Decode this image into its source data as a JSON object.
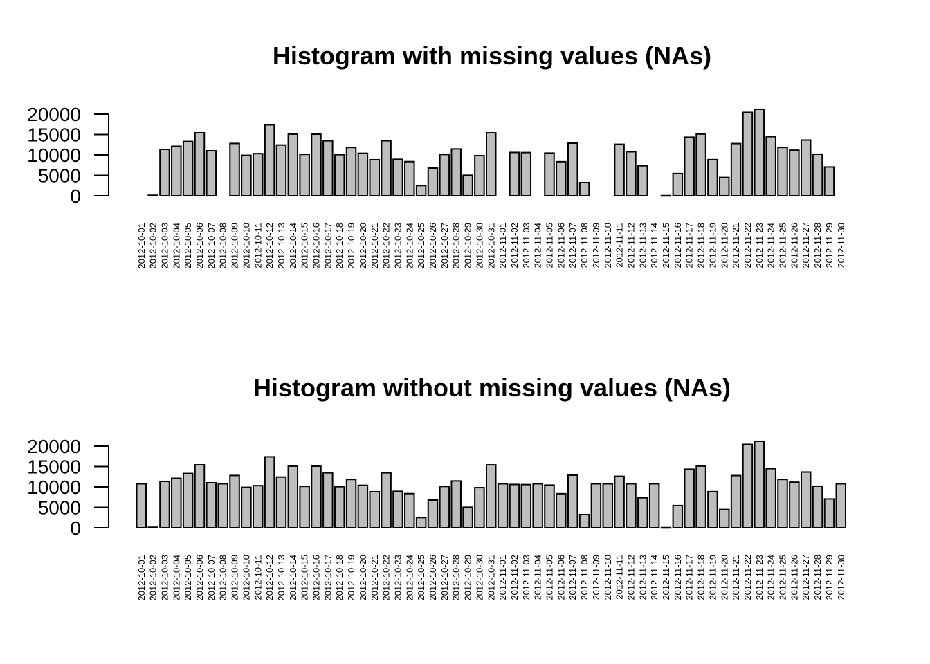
{
  "chart_data": [
    {
      "type": "bar",
      "title": "Histogram with missing values (NAs)",
      "xlabel": "",
      "ylabel": "",
      "ylim": [
        0,
        20000
      ],
      "yticks": [
        0,
        5000,
        10000,
        15000,
        20000
      ],
      "bar_color": "#bebebe",
      "categories": [
        "2012-10-01",
        "2012-10-02",
        "2012-10-03",
        "2012-10-04",
        "2012-10-05",
        "2012-10-06",
        "2012-10-07",
        "2012-10-08",
        "2012-10-09",
        "2012-10-10",
        "2012-10-11",
        "2012-10-12",
        "2012-10-13",
        "2012-10-14",
        "2012-10-15",
        "2012-10-16",
        "2012-10-17",
        "2012-10-18",
        "2012-10-19",
        "2012-10-20",
        "2012-10-21",
        "2012-10-22",
        "2012-10-23",
        "2012-10-24",
        "2012-10-25",
        "2012-10-26",
        "2012-10-27",
        "2012-10-28",
        "2012-10-29",
        "2012-10-30",
        "2012-10-31",
        "2012-11-01",
        "2012-11-02",
        "2012-11-03",
        "2012-11-04",
        "2012-11-05",
        "2012-11-06",
        "2012-11-07",
        "2012-11-08",
        "2012-11-09",
        "2012-11-10",
        "2012-11-11",
        "2012-11-12",
        "2012-11-13",
        "2012-11-14",
        "2012-11-15",
        "2012-11-16",
        "2012-11-17",
        "2012-11-18",
        "2012-11-19",
        "2012-11-20",
        "2012-11-21",
        "2012-11-22",
        "2012-11-23",
        "2012-11-24",
        "2012-11-25",
        "2012-11-26",
        "2012-11-27",
        "2012-11-28",
        "2012-11-29",
        "2012-11-30"
      ],
      "values": [
        null,
        126,
        11352,
        12116,
        13294,
        15420,
        11015,
        null,
        12811,
        9900,
        10304,
        17382,
        12426,
        15098,
        10139,
        15084,
        13452,
        10056,
        11829,
        10395,
        8821,
        13460,
        8918,
        8355,
        2492,
        6778,
        10119,
        11458,
        5018,
        9819,
        15414,
        null,
        10600,
        10571,
        null,
        10439,
        8334,
        12883,
        3219,
        null,
        null,
        12608,
        10765,
        7336,
        null,
        41,
        5441,
        14339,
        15110,
        8841,
        4472,
        12787,
        20427,
        21194,
        14478,
        11834,
        11162,
        13646,
        10183,
        7047,
        null
      ]
    },
    {
      "type": "bar",
      "title": "Histogram without missing values (NAs)",
      "xlabel": "",
      "ylabel": "",
      "ylim": [
        0,
        20000
      ],
      "yticks": [
        0,
        5000,
        10000,
        15000,
        20000
      ],
      "bar_color": "#bebebe",
      "categories": [
        "2012-10-01",
        "2012-10-02",
        "2012-10-03",
        "2012-10-04",
        "2012-10-05",
        "2012-10-06",
        "2012-10-07",
        "2012-10-08",
        "2012-10-09",
        "2012-10-10",
        "2012-10-11",
        "2012-10-12",
        "2012-10-13",
        "2012-10-14",
        "2012-10-15",
        "2012-10-16",
        "2012-10-17",
        "2012-10-18",
        "2012-10-19",
        "2012-10-20",
        "2012-10-21",
        "2012-10-22",
        "2012-10-23",
        "2012-10-24",
        "2012-10-25",
        "2012-10-26",
        "2012-10-27",
        "2012-10-28",
        "2012-10-29",
        "2012-10-30",
        "2012-10-31",
        "2012-11-01",
        "2012-11-02",
        "2012-11-03",
        "2012-11-04",
        "2012-11-05",
        "2012-11-06",
        "2012-11-07",
        "2012-11-08",
        "2012-11-09",
        "2012-11-10",
        "2012-11-11",
        "2012-11-12",
        "2012-11-13",
        "2012-11-14",
        "2012-11-15",
        "2012-11-16",
        "2012-11-17",
        "2012-11-18",
        "2012-11-19",
        "2012-11-20",
        "2012-11-21",
        "2012-11-22",
        "2012-11-23",
        "2012-11-24",
        "2012-11-25",
        "2012-11-26",
        "2012-11-27",
        "2012-11-28",
        "2012-11-29",
        "2012-11-30"
      ],
      "values": [
        10766,
        126,
        11352,
        12116,
        13294,
        15420,
        11015,
        10766,
        12811,
        9900,
        10304,
        17382,
        12426,
        15098,
        10139,
        15084,
        13452,
        10056,
        11829,
        10395,
        8821,
        13460,
        8918,
        8355,
        2492,
        6778,
        10119,
        11458,
        5018,
        9819,
        15414,
        10766,
        10600,
        10571,
        10766,
        10439,
        8334,
        12883,
        3219,
        10766,
        10766,
        12608,
        10765,
        7336,
        10766,
        41,
        5441,
        14339,
        15110,
        8841,
        4472,
        12787,
        20427,
        21194,
        14478,
        11834,
        11162,
        13646,
        10183,
        7047,
        10766
      ]
    }
  ]
}
